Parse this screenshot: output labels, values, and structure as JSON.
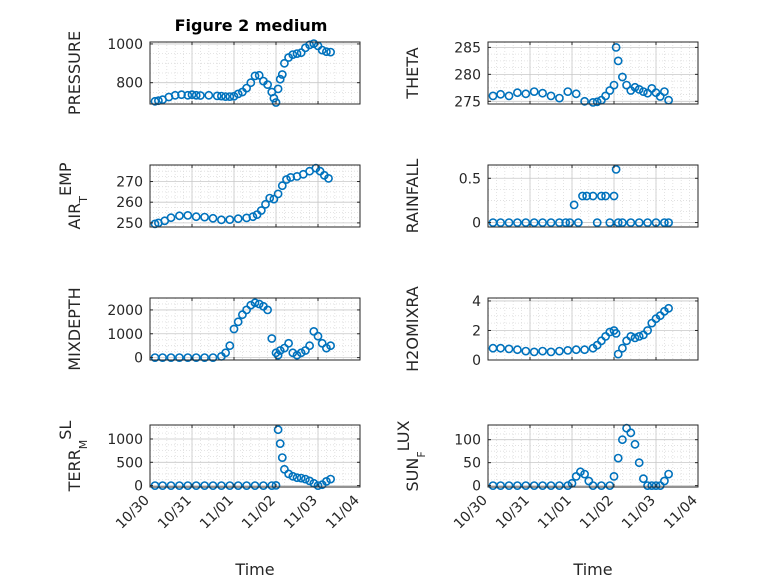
{
  "chart_data": {
    "type": "scatter",
    "title": "Figure 2 medium",
    "marker_color": "#0072BD",
    "grid": true,
    "x_ticks": [
      "10/30",
      "10/31",
      "11/01",
      "11/02",
      "11/03",
      "11/04"
    ],
    "xlabel": "Time",
    "panels": [
      {
        "ylabel": "PRESSURE",
        "ylabel_sub": "",
        "ylim": [
          690,
          1010
        ],
        "yticks": [
          800,
          1000
        ],
        "series": [
          {
            "x": [
              0.12,
              0.2,
              0.3,
              0.45,
              0.6,
              0.75,
              0.9,
              1.0,
              1.1,
              1.2,
              1.4,
              1.6,
              1.7,
              1.8,
              1.9,
              2.0,
              2.1,
              2.2,
              2.3,
              2.4,
              2.5,
              2.6,
              2.7,
              2.8,
              2.9,
              2.95,
              3.0,
              3.05,
              3.1,
              3.15,
              3.2,
              3.3,
              3.4,
              3.5,
              3.6,
              3.7,
              3.8,
              3.9,
              4.0,
              4.1,
              4.2,
              4.3
            ],
            "y": [
              704,
              707,
              712,
              726,
              735,
              738,
              735,
              738,
              735,
              734,
              735,
              732,
              731,
              728,
              728,
              730,
              742,
              752,
              772,
              800,
              835,
              838,
              808,
              790,
              752,
              720,
              698,
              768,
              818,
              842,
              900,
              930,
              945,
              950,
              955,
              980,
              995,
              1002,
              990,
              968,
              960,
              958
            ]
          }
        ]
      },
      {
        "ylabel": "THETA",
        "ylabel_sub": "",
        "ylim": [
          274.5,
          286
        ],
        "yticks": [
          275,
          280,
          285
        ],
        "series": [
          {
            "x": [
              0.12,
              0.3,
              0.5,
              0.7,
              0.9,
              1.1,
              1.3,
              1.5,
              1.7,
              1.9,
              2.1,
              2.3,
              2.5,
              2.6,
              2.7,
              2.8,
              2.9,
              3.0,
              3.05,
              3.1,
              3.2,
              3.3,
              3.4,
              3.5,
              3.6,
              3.7,
              3.8,
              3.9,
              4.0,
              4.1,
              4.2,
              4.3
            ],
            "y": [
              276.0,
              276.3,
              276.0,
              276.6,
              276.4,
              276.8,
              276.5,
              276.0,
              275.6,
              276.8,
              276.4,
              275.0,
              274.8,
              274.9,
              275.2,
              276.0,
              277.0,
              278.0,
              285.0,
              282.5,
              279.5,
              278.0,
              277.0,
              277.6,
              277.2,
              276.8,
              276.5,
              277.4,
              276.6,
              275.9,
              276.8,
              275.2
            ]
          }
        ]
      },
      {
        "ylabel": "AIR",
        "ylabel_sub": "T",
        "ylabel_suffix": "EMP",
        "ylim": [
          248,
          278
        ],
        "yticks": [
          250,
          260,
          270
        ],
        "series": [
          {
            "x": [
              0.12,
              0.2,
              0.35,
              0.5,
              0.7,
              0.9,
              1.1,
              1.3,
              1.5,
              1.7,
              1.9,
              2.1,
              2.3,
              2.45,
              2.55,
              2.65,
              2.75,
              2.85,
              2.95,
              3.05,
              3.15,
              3.25,
              3.35,
              3.5,
              3.65,
              3.8,
              3.95,
              4.05,
              4.15,
              4.25
            ],
            "y": [
              249.5,
              250.0,
              251.0,
              252.5,
              253.4,
              253.6,
              253.0,
              252.8,
              252.2,
              251.5,
              251.6,
              252.0,
              252.4,
              253.0,
              254.0,
              256.0,
              259.0,
              262.0,
              261.5,
              264.0,
              268.0,
              271.0,
              272.0,
              272.5,
              273.5,
              275.0,
              276.5,
              275.0,
              273.0,
              271.5
            ]
          }
        ]
      },
      {
        "ylabel": "RAINFALL",
        "ylabel_sub": "",
        "ylim": [
          -0.05,
          0.65
        ],
        "yticks": [
          0,
          0.5
        ],
        "series": [
          {
            "x": [
              0.12,
              0.3,
              0.5,
              0.7,
              0.9,
              1.1,
              1.3,
              1.5,
              1.7,
              1.85,
              1.95,
              2.05,
              2.15,
              2.25,
              2.35,
              2.5,
              2.6,
              2.7,
              2.8,
              2.9,
              3.0,
              3.05,
              3.1,
              3.2,
              3.4,
              3.6,
              3.8,
              4.0,
              4.2,
              4.3
            ],
            "y": [
              0,
              0,
              0,
              0,
              0,
              0,
              0,
              0,
              0,
              0,
              0,
              0.2,
              0,
              0.3,
              0.3,
              0.3,
              0,
              0.3,
              0.3,
              0,
              0.3,
              0.6,
              0,
              0,
              0,
              0,
              0,
              0,
              0,
              0
            ]
          }
        ]
      },
      {
        "ylabel": "MIXDEPTH",
        "ylabel_sub": "",
        "ylim": [
          -100,
          2500
        ],
        "yticks": [
          0,
          1000,
          2000
        ],
        "series": [
          {
            "x": [
              0.12,
              0.3,
              0.5,
              0.7,
              0.9,
              1.1,
              1.3,
              1.5,
              1.7,
              1.8,
              1.9,
              2.0,
              2.1,
              2.2,
              2.3,
              2.4,
              2.5,
              2.6,
              2.7,
              2.8,
              2.9,
              3.0,
              3.05,
              3.1,
              3.2,
              3.3,
              3.4,
              3.5,
              3.6,
              3.7,
              3.8,
              3.9,
              4.0,
              4.1,
              4.2,
              4.3
            ],
            "y": [
              0,
              0,
              0,
              0,
              0,
              0,
              0,
              0,
              50,
              200,
              500,
              1200,
              1500,
              1800,
              2000,
              2200,
              2300,
              2250,
              2150,
              2000,
              800,
              200,
              100,
              300,
              400,
              600,
              200,
              100,
              200,
              300,
              500,
              1100,
              900,
              600,
              400,
              500
            ]
          }
        ]
      },
      {
        "ylabel": "H2OMIXRA",
        "ylabel_sub": "",
        "ylim": [
          0,
          4.2
        ],
        "yticks": [
          0,
          2,
          4
        ],
        "series": [
          {
            "x": [
              0.12,
              0.3,
              0.5,
              0.7,
              0.9,
              1.1,
              1.3,
              1.5,
              1.7,
              1.9,
              2.1,
              2.3,
              2.5,
              2.6,
              2.7,
              2.8,
              2.9,
              3.0,
              3.05,
              3.1,
              3.2,
              3.3,
              3.4,
              3.5,
              3.6,
              3.7,
              3.8,
              3.9,
              4.0,
              4.1,
              4.2,
              4.3
            ],
            "y": [
              0.8,
              0.8,
              0.75,
              0.7,
              0.6,
              0.55,
              0.6,
              0.55,
              0.6,
              0.65,
              0.7,
              0.7,
              0.8,
              1.0,
              1.3,
              1.6,
              1.9,
              2.0,
              1.8,
              0.4,
              0.8,
              1.3,
              1.6,
              1.5,
              1.6,
              1.7,
              2.0,
              2.5,
              2.8,
              3.0,
              3.3,
              3.5
            ]
          }
        ]
      },
      {
        "ylabel": "TERR",
        "ylabel_sub": "M",
        "ylabel_suffix": "SL",
        "ylim": [
          -30,
          1300
        ],
        "yticks": [
          0,
          500,
          1000
        ],
        "series": [
          {
            "x": [
              0.12,
              0.3,
              0.5,
              0.7,
              0.9,
              1.1,
              1.3,
              1.5,
              1.7,
              1.9,
              2.1,
              2.3,
              2.5,
              2.7,
              2.9,
              3.0,
              3.05,
              3.1,
              3.15,
              3.2,
              3.3,
              3.4,
              3.5,
              3.6,
              3.7,
              3.8,
              3.9,
              4.0,
              4.1,
              4.2,
              4.3
            ],
            "y": [
              0,
              0,
              0,
              0,
              0,
              0,
              0,
              0,
              0,
              0,
              0,
              0,
              0,
              0,
              0,
              5,
              1200,
              900,
              600,
              350,
              250,
              200,
              170,
              160,
              140,
              100,
              50,
              0,
              20,
              90,
              140
            ]
          }
        ]
      },
      {
        "ylabel": "SUN",
        "ylabel_sub": "F",
        "ylabel_suffix": "LUX",
        "ylim": [
          -3,
          132
        ],
        "yticks": [
          0,
          50,
          100
        ],
        "series": [
          {
            "x": [
              0.12,
              0.3,
              0.5,
              0.7,
              0.9,
              1.1,
              1.3,
              1.5,
              1.7,
              1.9,
              2.0,
              2.1,
              2.2,
              2.3,
              2.4,
              2.5,
              2.7,
              2.9,
              3.0,
              3.1,
              3.2,
              3.3,
              3.4,
              3.5,
              3.6,
              3.7,
              3.8,
              3.9,
              4.0,
              4.1,
              4.2,
              4.3
            ],
            "y": [
              0,
              0,
              0,
              0,
              0,
              0,
              0,
              0,
              0,
              0,
              5,
              20,
              30,
              25,
              10,
              0,
              0,
              0,
              20,
              60,
              100,
              125,
              115,
              90,
              50,
              15,
              0,
              0,
              0,
              0,
              10,
              25
            ]
          }
        ]
      }
    ]
  }
}
